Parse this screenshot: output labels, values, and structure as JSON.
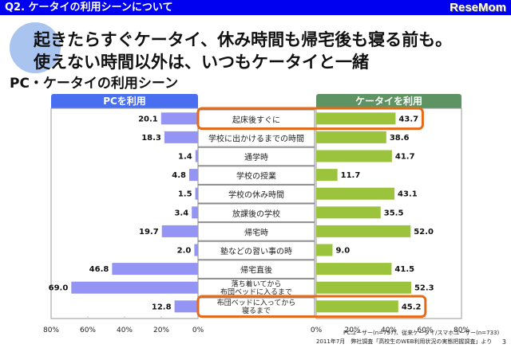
{
  "header": {
    "question": "Q2. ケータイの利用シーンについて",
    "logo": "ReseMom"
  },
  "headline": {
    "line1": "起きたらすぐケータイ、休み時間も帰宅後も寝る前も。",
    "line2": "使えない時間以外は、いつもケータイと一緒"
  },
  "subtitle": "PC・ケータイの利用シーン",
  "footer": {
    "note": "PCユーザー(n=797)、従来ケータイ/スマホユーザー(n=733)",
    "source": "2011年7月　弊社調査「高校生のWEB利用状況の実態把握調査」より",
    "page": "3"
  },
  "colors": {
    "pc_bar": "#9494f5",
    "keitai_bar": "#9bc43c",
    "highlight": "#e86a17",
    "pc_header": "#4a6ef0",
    "keitai_header": "#5e9463"
  },
  "chart_data": {
    "type": "bar",
    "orientation": "horizontal-butterfly",
    "title": "PC・ケータイの利用シーン",
    "categories": [
      "起床後すぐに",
      "学校に出かけるまでの時間",
      "通学時",
      "学校の授業",
      "学校の休み時間",
      "放課後の学校",
      "帰宅時",
      "塾などの習い事の時",
      "帰宅直後",
      "落ち着いてから\n布団ベッドに入るまで",
      "布団ベッドに入ってから\n寝るまで"
    ],
    "series": [
      {
        "name": "PCを利用",
        "side": "left",
        "values": [
          20.1,
          18.3,
          1.4,
          4.8,
          1.5,
          3.4,
          19.7,
          2.0,
          46.8,
          69.0,
          12.8
        ]
      },
      {
        "name": "ケータイを利用",
        "side": "right",
        "values": [
          43.7,
          38.6,
          41.7,
          11.7,
          43.1,
          35.5,
          52.0,
          9.0,
          41.5,
          52.3,
          45.2
        ]
      }
    ],
    "value_labels": {
      "left": [
        "20.1",
        "18.3",
        "1.4",
        "4.8",
        "1.5",
        "3.4",
        "19.7",
        "2.0",
        "46.8",
        "69.0",
        "12.8"
      ],
      "right": [
        "43.7",
        "38.6",
        "41.7",
        "11.7",
        "43.1",
        "35.5",
        "52.0",
        "9.0",
        "41.5",
        "52.3",
        "45.2"
      ]
    },
    "xlim": [
      0,
      80
    ],
    "xticks_left": [
      "80%",
      "60%",
      "40%",
      "20%",
      "0%"
    ],
    "xticks_right": [
      "0%",
      "20%",
      "40%",
      "60%",
      "80%"
    ],
    "highlighted_categories": [
      "起床後すぐに",
      "布団ベッドに入ってから\n寝るまで"
    ],
    "unit": "%"
  }
}
